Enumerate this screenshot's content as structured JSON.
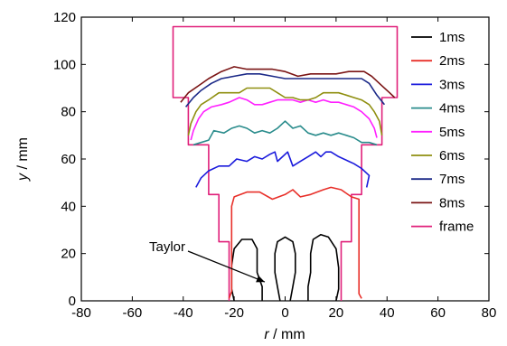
{
  "chart_data": {
    "type": "line",
    "xlabel_var": "r",
    "xlabel_unit": " / mm",
    "ylabel_var": "y",
    "ylabel_unit": " / mm",
    "xlim": [
      -80,
      80
    ],
    "ylim": [
      0,
      120
    ],
    "x_ticks": [
      -80,
      -60,
      -40,
      -20,
      0,
      20,
      40,
      60,
      80
    ],
    "y_ticks": [
      0,
      20,
      40,
      60,
      80,
      100,
      120
    ],
    "grid": false,
    "legend_position": "right",
    "annotation": {
      "text": "Taylor",
      "points_to": [
        -8,
        8
      ]
    },
    "series": [
      {
        "name": "1ms",
        "color": "#000000",
        "segments": [
          [
            [
              -20,
              0
            ],
            [
              -21,
              5
            ],
            [
              -21,
              15
            ],
            [
              -20,
              22
            ],
            [
              -17,
              26
            ],
            [
              -13,
              26
            ],
            [
              -11,
              22
            ],
            [
              -11,
              12
            ],
            [
              -9,
              6
            ],
            [
              -9,
              0
            ]
          ],
          [
            [
              -2,
              0
            ],
            [
              -3,
              6
            ],
            [
              -4,
              12
            ],
            [
              -4,
              20
            ],
            [
              -3,
              25
            ],
            [
              0,
              27
            ],
            [
              3,
              25
            ],
            [
              4,
              20
            ],
            [
              4,
              12
            ],
            [
              3,
              6
            ],
            [
              2,
              0
            ]
          ],
          [
            [
              9,
              0
            ],
            [
              9,
              6
            ],
            [
              10,
              12
            ],
            [
              10,
              20
            ],
            [
              11,
              26
            ],
            [
              14,
              28
            ],
            [
              17,
              27
            ],
            [
              20,
              22
            ],
            [
              21,
              14
            ],
            [
              21,
              5
            ],
            [
              20,
              0
            ]
          ]
        ]
      },
      {
        "name": "2ms",
        "color": "#e8302a",
        "points": [
          [
            -22,
            1
          ],
          [
            -21,
            4
          ],
          [
            -21,
            40
          ],
          [
            -20,
            44
          ],
          [
            -15,
            46
          ],
          [
            -10,
            46
          ],
          [
            -5,
            43
          ],
          [
            0,
            45
          ],
          [
            3,
            47
          ],
          [
            6,
            44
          ],
          [
            10,
            45
          ],
          [
            15,
            47
          ],
          [
            18,
            48
          ],
          [
            22,
            47
          ],
          [
            26,
            44
          ],
          [
            29,
            43
          ],
          [
            29,
            3
          ],
          [
            30,
            1
          ]
        ]
      },
      {
        "name": "3ms",
        "color": "#1a1adc",
        "points": [
          [
            -35,
            48
          ],
          [
            -33,
            52
          ],
          [
            -30,
            55
          ],
          [
            -26,
            57
          ],
          [
            -22,
            57
          ],
          [
            -19,
            60
          ],
          [
            -15,
            59
          ],
          [
            -12,
            61
          ],
          [
            -9,
            60
          ],
          [
            -6,
            62
          ],
          [
            -4,
            63
          ],
          [
            -3,
            59
          ],
          [
            -1,
            61
          ],
          [
            1,
            63
          ],
          [
            3,
            57
          ],
          [
            6,
            59
          ],
          [
            9,
            61
          ],
          [
            12,
            63
          ],
          [
            14,
            61
          ],
          [
            16,
            63
          ],
          [
            18,
            63
          ],
          [
            21,
            61
          ],
          [
            25,
            59
          ],
          [
            27,
            58
          ],
          [
            30,
            56
          ],
          [
            32,
            54
          ],
          [
            33,
            53
          ],
          [
            32,
            48
          ]
        ]
      },
      {
        "name": "4ms",
        "color": "#2a8c8c",
        "points": [
          [
            -36,
            66
          ],
          [
            -33,
            67
          ],
          [
            -30,
            68
          ],
          [
            -28,
            72
          ],
          [
            -24,
            71
          ],
          [
            -21,
            73
          ],
          [
            -18,
            74
          ],
          [
            -15,
            73
          ],
          [
            -12,
            71
          ],
          [
            -9,
            72
          ],
          [
            -6,
            71
          ],
          [
            -3,
            73
          ],
          [
            0,
            76
          ],
          [
            3,
            73
          ],
          [
            6,
            74
          ],
          [
            9,
            71
          ],
          [
            12,
            70
          ],
          [
            15,
            71
          ],
          [
            18,
            70
          ],
          [
            21,
            71
          ],
          [
            24,
            70
          ],
          [
            27,
            69
          ],
          [
            30,
            67
          ],
          [
            33,
            67
          ],
          [
            36,
            66
          ]
        ]
      },
      {
        "name": "5ms",
        "color": "#ff20ff",
        "points": [
          [
            -37,
            68
          ],
          [
            -36,
            72
          ],
          [
            -34,
            77
          ],
          [
            -32,
            80
          ],
          [
            -29,
            82
          ],
          [
            -25,
            83
          ],
          [
            -22,
            84
          ],
          [
            -18,
            86
          ],
          [
            -15,
            85
          ],
          [
            -12,
            83
          ],
          [
            -9,
            83
          ],
          [
            -6,
            84
          ],
          [
            -3,
            85
          ],
          [
            0,
            85
          ],
          [
            3,
            85
          ],
          [
            6,
            84
          ],
          [
            9,
            85
          ],
          [
            12,
            84
          ],
          [
            15,
            85
          ],
          [
            18,
            84
          ],
          [
            21,
            84
          ],
          [
            24,
            83
          ],
          [
            27,
            82
          ],
          [
            30,
            80
          ],
          [
            33,
            77
          ],
          [
            35,
            73
          ],
          [
            36,
            69
          ]
        ]
      },
      {
        "name": "6ms",
        "color": "#8f8f10",
        "points": [
          [
            -38,
            70
          ],
          [
            -37,
            75
          ],
          [
            -35,
            80
          ],
          [
            -33,
            83
          ],
          [
            -30,
            85
          ],
          [
            -26,
            88
          ],
          [
            -22,
            88
          ],
          [
            -18,
            88
          ],
          [
            -15,
            90
          ],
          [
            -12,
            90
          ],
          [
            -9,
            90
          ],
          [
            -6,
            90
          ],
          [
            -3,
            88
          ],
          [
            0,
            86
          ],
          [
            3,
            86
          ],
          [
            6,
            85
          ],
          [
            9,
            85
          ],
          [
            12,
            86
          ],
          [
            15,
            88
          ],
          [
            18,
            88
          ],
          [
            21,
            88
          ],
          [
            24,
            87
          ],
          [
            27,
            86
          ],
          [
            30,
            85
          ],
          [
            33,
            83
          ],
          [
            35,
            80
          ],
          [
            37,
            76
          ],
          [
            38,
            70
          ]
        ]
      },
      {
        "name": "7ms",
        "color": "#1c2a88",
        "points": [
          [
            -39,
            82
          ],
          [
            -36,
            86
          ],
          [
            -33,
            89
          ],
          [
            -29,
            92
          ],
          [
            -25,
            94
          ],
          [
            -20,
            95
          ],
          [
            -15,
            96
          ],
          [
            -10,
            96
          ],
          [
            -5,
            95
          ],
          [
            0,
            94
          ],
          [
            5,
            94
          ],
          [
            10,
            94
          ],
          [
            15,
            94
          ],
          [
            20,
            94
          ],
          [
            25,
            94
          ],
          [
            30,
            94
          ],
          [
            33,
            92
          ],
          [
            36,
            87
          ],
          [
            39,
            83
          ]
        ]
      },
      {
        "name": "8ms",
        "color": "#7a1414",
        "points": [
          [
            -41,
            84
          ],
          [
            -38,
            88
          ],
          [
            -34,
            91
          ],
          [
            -30,
            94
          ],
          [
            -25,
            97
          ],
          [
            -20,
            99
          ],
          [
            -15,
            98
          ],
          [
            -10,
            98
          ],
          [
            -5,
            98
          ],
          [
            0,
            97
          ],
          [
            5,
            95
          ],
          [
            10,
            96
          ],
          [
            15,
            96
          ],
          [
            20,
            96
          ],
          [
            25,
            97
          ],
          [
            31,
            97
          ],
          [
            34,
            95
          ],
          [
            38,
            91
          ],
          [
            41,
            88
          ],
          [
            43,
            86
          ]
        ]
      },
      {
        "name": "frame",
        "color": "#e0207a",
        "points": [
          [
            -22,
            0
          ],
          [
            -22,
            25
          ],
          [
            -26,
            25
          ],
          [
            -26,
            45
          ],
          [
            -30,
            45
          ],
          [
            -30,
            66
          ],
          [
            -38,
            66
          ],
          [
            -38,
            86
          ],
          [
            -44,
            86
          ],
          [
            -44,
            116
          ],
          [
            44,
            116
          ],
          [
            44,
            86
          ],
          [
            38,
            86
          ],
          [
            38,
            66
          ],
          [
            30,
            66
          ],
          [
            30,
            45
          ],
          [
            26,
            45
          ],
          [
            26,
            25
          ],
          [
            22,
            25
          ],
          [
            22,
            0
          ]
        ]
      }
    ]
  }
}
